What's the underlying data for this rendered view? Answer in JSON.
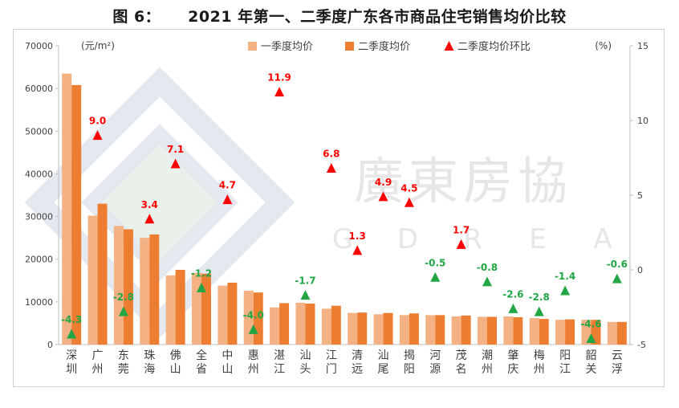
{
  "title": {
    "label": "图 6：",
    "text": "2021 年第一、二季度广东各市商品住宅销售均价比较"
  },
  "chart_data": {
    "type": "bar",
    "title": "2021 年第一、二季度广东各市商品住宅销售均价比较",
    "ylabel_left": "(元/m²)",
    "ylabel_right": "(%)",
    "ylim_left": [
      0,
      70000
    ],
    "ylim_right": [
      -5,
      15
    ],
    "yticks_left": [
      "0",
      "10000",
      "20000",
      "30000",
      "40000",
      "50000",
      "60000",
      "70000"
    ],
    "yticks_right": [
      "-5",
      "0",
      "5",
      "10",
      "15"
    ],
    "categories": [
      "深圳",
      "广州",
      "东莞",
      "珠海",
      "佛山",
      "全省",
      "中山",
      "惠州",
      "湛江",
      "汕头",
      "江门",
      "清远",
      "汕尾",
      "揭阳",
      "河源",
      "茂名",
      "潮州",
      "肇庆",
      "梅州",
      "阳江",
      "韶关",
      "云浮"
    ],
    "series": [
      {
        "name": "一季度均价",
        "type": "bar",
        "axis": "left",
        "color": "#f4b183",
        "values": [
          63500,
          30200,
          27800,
          25000,
          16200,
          16800,
          13800,
          12600,
          8700,
          9800,
          8400,
          7400,
          7100,
          6900,
          6900,
          6600,
          6500,
          6600,
          6200,
          5800,
          5800,
          5300
        ]
      },
      {
        "name": "二季度均价",
        "type": "bar",
        "axis": "left",
        "color": "#ed7d31",
        "values": [
          60800,
          33000,
          27000,
          25800,
          17500,
          16600,
          14500,
          12200,
          9700,
          9600,
          9100,
          7500,
          7400,
          7300,
          6900,
          6800,
          6500,
          6400,
          6000,
          5900,
          5800,
          5300
        ]
      },
      {
        "name": "二季度均价环比",
        "type": "marker",
        "axis": "right",
        "values": [
          -4.3,
          9.0,
          -2.8,
          3.4,
          7.1,
          -1.2,
          4.7,
          -4.0,
          11.9,
          -1.7,
          6.8,
          1.3,
          4.9,
          4.5,
          -0.5,
          1.7,
          -0.8,
          -2.6,
          -2.8,
          -1.4,
          -4.6,
          -0.6
        ],
        "labels": [
          "-4.3",
          "9.0",
          "-2.8",
          "3.4",
          "7.1",
          "-1.2",
          "4.7",
          "-4.0",
          "11.9",
          "-1.7",
          "6.8",
          "1.3",
          "4.9",
          "4.5",
          "-0.5",
          "1.7",
          "-0.8",
          "-2.6",
          "-2.8",
          "-1.4",
          "-4.6",
          "-0.6"
        ],
        "positive_color": "#ff0000",
        "negative_color": "#22a645"
      }
    ],
    "legend_position": "top-center",
    "grid": false
  },
  "watermark": {
    "chinese": "廣東房協",
    "latin": [
      "G",
      "D",
      "R",
      "E",
      "A"
    ]
  }
}
